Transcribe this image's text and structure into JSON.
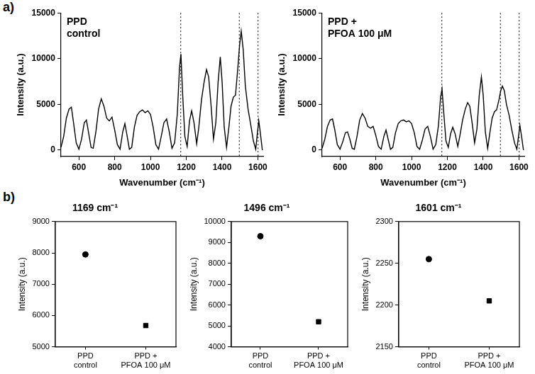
{
  "panel_labels": [
    "a)",
    "b)"
  ],
  "chart_data": [
    {
      "type": "line",
      "annotation": [
        "PPD",
        "control"
      ],
      "x_label": "Wavenumber (cm⁻¹)",
      "y_label": "Intensity (a.u.)",
      "x": [
        500,
        515,
        530,
        545,
        558,
        570,
        585,
        600,
        615,
        630,
        642,
        655,
        668,
        680,
        695,
        710,
        725,
        740,
        755,
        770,
        785,
        800,
        815,
        830,
        845,
        857,
        870,
        882,
        895,
        910,
        925,
        940,
        955,
        970,
        985,
        1000,
        1015,
        1030,
        1045,
        1060,
        1075,
        1090,
        1105,
        1120,
        1135,
        1150,
        1162,
        1170,
        1180,
        1192,
        1205,
        1218,
        1230,
        1243,
        1258,
        1270,
        1285,
        1300,
        1313,
        1325,
        1338,
        1352,
        1365,
        1378,
        1390,
        1400,
        1412,
        1425,
        1438,
        1450,
        1463,
        1475,
        1488,
        1498,
        1507,
        1518,
        1530,
        1545,
        1560,
        1575,
        1588,
        1598,
        1605,
        1613,
        1625
      ],
      "series": [
        {
          "color": "#000000",
          "values": [
            300,
            1500,
            3500,
            4500,
            4700,
            3000,
            800,
            100,
            1200,
            3000,
            3300,
            1800,
            300,
            200,
            2000,
            4500,
            5600,
            4800,
            3500,
            3200,
            3600,
            2200,
            600,
            100,
            2000,
            2900,
            1500,
            100,
            300,
            2500,
            3800,
            4200,
            4400,
            4100,
            4300,
            3900,
            2500,
            600,
            100,
            1500,
            3000,
            3400,
            2000,
            200,
            800,
            4000,
            9000,
            10500,
            6000,
            1500,
            400,
            3200,
            4300,
            3000,
            700,
            2500,
            5500,
            7500,
            8800,
            8000,
            5000,
            1200,
            3000,
            7500,
            10200,
            7500,
            2500,
            300,
            2500,
            4800,
            5800,
            6000,
            9000,
            11500,
            13000,
            11000,
            7000,
            4500,
            2800,
            1000,
            100,
            2000,
            3200,
            2000,
            0
          ]
        }
      ],
      "vlines": [
        1169,
        1496,
        1601
      ],
      "xlim": [
        500,
        1630
      ],
      "xticks": [
        600,
        800,
        1000,
        1200,
        1400,
        1600
      ],
      "ylim": [
        -700,
        15000
      ],
      "yticks": [
        0,
        5000,
        10000,
        15000
      ],
      "grid": false
    },
    {
      "type": "line",
      "annotation": [
        "PPD +",
        "PFOA 100 μM"
      ],
      "x_label": "Wavenumber (cm⁻¹)",
      "y_label": "Intensity (a.u.)",
      "x": [
        500,
        515,
        530,
        545,
        558,
        570,
        585,
        600,
        615,
        630,
        642,
        655,
        668,
        680,
        695,
        710,
        725,
        740,
        755,
        770,
        785,
        800,
        815,
        830,
        845,
        857,
        870,
        882,
        895,
        910,
        925,
        940,
        955,
        970,
        985,
        1000,
        1015,
        1030,
        1045,
        1060,
        1075,
        1090,
        1105,
        1120,
        1135,
        1150,
        1162,
        1170,
        1180,
        1192,
        1205,
        1218,
        1230,
        1243,
        1258,
        1270,
        1285,
        1300,
        1313,
        1325,
        1338,
        1352,
        1365,
        1378,
        1390,
        1400,
        1412,
        1425,
        1438,
        1450,
        1463,
        1475,
        1488,
        1498,
        1507,
        1518,
        1530,
        1545,
        1560,
        1575,
        1588,
        1598,
        1605,
        1613,
        1625
      ],
      "series": [
        {
          "color": "#000000",
          "values": [
            200,
            1200,
            2600,
            3300,
            3400,
            2300,
            600,
            100,
            900,
            1900,
            2000,
            1200,
            200,
            100,
            1500,
            3300,
            4000,
            3500,
            2600,
            2400,
            2600,
            1600,
            400,
            100,
            1500,
            2200,
            1100,
            100,
            300,
            1900,
            2900,
            3200,
            3300,
            3100,
            3200,
            2900,
            1900,
            400,
            100,
            1100,
            2300,
            2600,
            1500,
            100,
            600,
            2700,
            5800,
            6700,
            4000,
            1000,
            300,
            1800,
            2500,
            1800,
            400,
            1600,
            3300,
            4500,
            5200,
            4800,
            3000,
            800,
            2300,
            6000,
            8000,
            6000,
            2000,
            200,
            2000,
            3500,
            4200,
            4400,
            5500,
            6500,
            7000,
            6500,
            5000,
            3800,
            2200,
            800,
            100,
            1600,
            2700,
            1700,
            0
          ]
        }
      ],
      "vlines": [
        1169,
        1496,
        1601
      ],
      "xlim": [
        500,
        1630
      ],
      "xticks": [
        600,
        800,
        1000,
        1200,
        1400,
        1600
      ],
      "ylim": [
        -700,
        15000
      ],
      "yticks": [
        0,
        5000,
        10000,
        15000
      ],
      "grid": false
    },
    {
      "type": "scatter",
      "title": "1169 cm⁻¹",
      "y_label": "Intensity (a.u.)",
      "categories": [
        [
          "PPD",
          "control"
        ],
        [
          "PPD +",
          "PFOA 100 μM"
        ]
      ],
      "series": [
        {
          "color": "#000000",
          "marker": "circle",
          "values": [
            7950,
            null
          ]
        },
        {
          "color": "#000000",
          "marker": "square",
          "values": [
            null,
            5680
          ]
        }
      ],
      "ylim": [
        5000,
        9000
      ],
      "yticks": [
        5000,
        6000,
        7000,
        8000,
        9000
      ],
      "grid": false
    },
    {
      "type": "scatter",
      "title": "1496 cm⁻¹",
      "y_label": "Intensity (a.u.)",
      "categories": [
        [
          "PPD",
          "control"
        ],
        [
          "PPD +",
          "PFOA 100 μM"
        ]
      ],
      "series": [
        {
          "color": "#000000",
          "marker": "circle",
          "values": [
            9300,
            null
          ]
        },
        {
          "color": "#000000",
          "marker": "square",
          "values": [
            null,
            5200
          ]
        }
      ],
      "ylim": [
        4000,
        10000
      ],
      "yticks": [
        4000,
        5000,
        6000,
        7000,
        8000,
        9000,
        10000
      ],
      "grid": false
    },
    {
      "type": "scatter",
      "title": "1601 cm⁻¹",
      "y_label": "Intensity (a.u.)",
      "categories": [
        [
          "PPD",
          "control"
        ],
        [
          "PPD +",
          "PFOA 100 μM"
        ]
      ],
      "series": [
        {
          "color": "#000000",
          "marker": "circle",
          "values": [
            2255,
            null
          ]
        },
        {
          "color": "#000000",
          "marker": "square",
          "values": [
            null,
            2205
          ]
        }
      ],
      "ylim": [
        2150,
        2300
      ],
      "yticks": [
        2150,
        2200,
        2250,
        2300
      ],
      "grid": false
    }
  ]
}
